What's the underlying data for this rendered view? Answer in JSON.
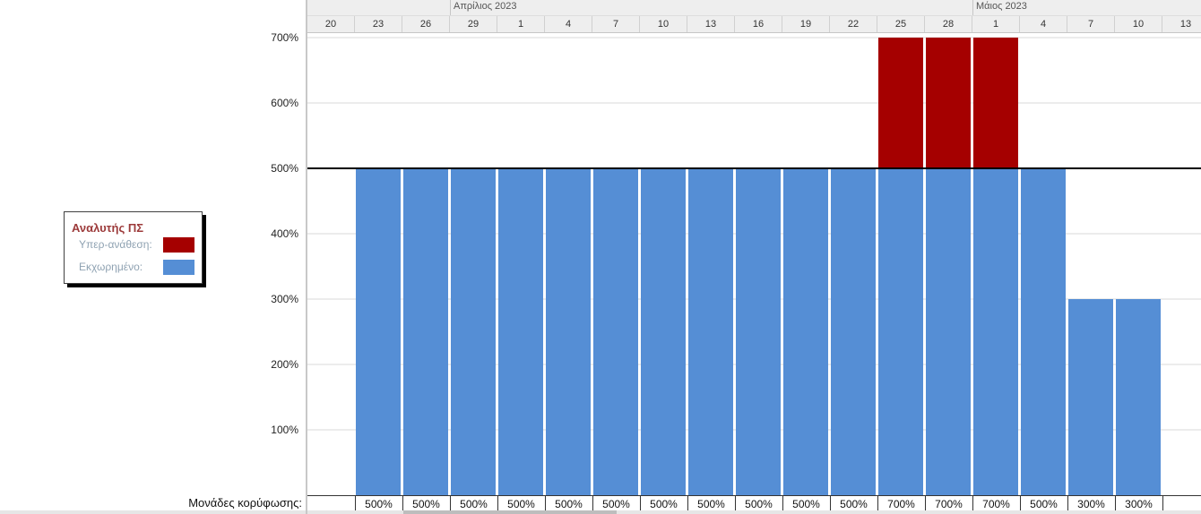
{
  "legend": {
    "title": "Αναλυτής ΠΣ",
    "items": [
      {
        "label": "Υπερ-ανάθεση:",
        "color": "#a50000"
      },
      {
        "label": "Εκχωρημένο:",
        "color": "#558ed5"
      }
    ]
  },
  "timescale": {
    "months": [
      {
        "label": "Απρίλιος 2023",
        "start_index": 3
      },
      {
        "label": "Μάιος 2023",
        "start_index": 14
      }
    ],
    "days": [
      "20",
      "23",
      "26",
      "29",
      "1",
      "4",
      "7",
      "10",
      "13",
      "16",
      "19",
      "22",
      "25",
      "28",
      "1",
      "4",
      "7",
      "10",
      "13"
    ]
  },
  "peak_row": {
    "label": "Μονάδες κορύφωσης:"
  },
  "chart_data": {
    "type": "bar",
    "stacked": true,
    "categories": [
      "20",
      "23",
      "26",
      "29",
      "1",
      "4",
      "7",
      "10",
      "13",
      "16",
      "19",
      "22",
      "25",
      "28",
      "1",
      "4",
      "7",
      "10",
      "13"
    ],
    "series": [
      {
        "name": "Εκχωρημένο:",
        "color": "#558ed5",
        "values": [
          null,
          500,
          500,
          500,
          500,
          500,
          500,
          500,
          500,
          500,
          500,
          500,
          500,
          500,
          500,
          500,
          300,
          300,
          null
        ]
      },
      {
        "name": "Υπερ-ανάθεση:",
        "color": "#a50000",
        "values": [
          null,
          0,
          0,
          0,
          0,
          0,
          0,
          0,
          0,
          0,
          0,
          0,
          200,
          200,
          200,
          0,
          0,
          0,
          null
        ]
      }
    ],
    "peak_units": [
      "",
      "500%",
      "500%",
      "500%",
      "500%",
      "500%",
      "500%",
      "500%",
      "500%",
      "500%",
      "500%",
      "500%",
      "700%",
      "700%",
      "700%",
      "500%",
      "300%",
      "300%",
      ""
    ],
    "y_ticks": [
      "100%",
      "200%",
      "300%",
      "400%",
      "500%",
      "600%",
      "700%"
    ],
    "y_tick_values": [
      100,
      200,
      300,
      400,
      500,
      600,
      700
    ],
    "max_units": 500,
    "ylim": [
      0,
      700
    ],
    "grid": true
  }
}
